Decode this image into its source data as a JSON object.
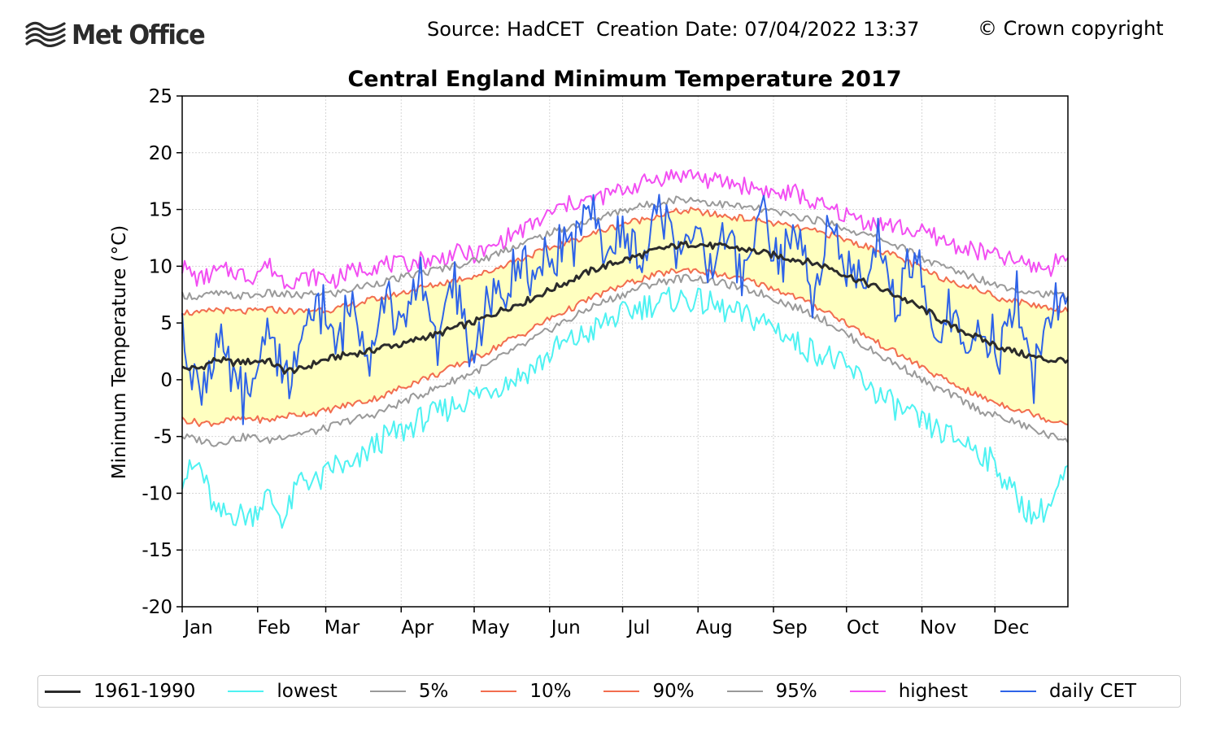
{
  "header": {
    "logo_text": "Met Office",
    "source_text": "Source: HadCET  Creation Date: 07/04/2022 13:37",
    "copyright_text": "© Crown copyright"
  },
  "chart_data": {
    "type": "line",
    "title": "Central England Minimum Temperature 2017",
    "xlabel": "",
    "ylabel": "Minimum Temperature (°C)",
    "ylim": [
      -20,
      25
    ],
    "xlim": [
      1,
      365
    ],
    "yticks": [
      -20,
      -15,
      -10,
      -5,
      0,
      5,
      10,
      15,
      20,
      25
    ],
    "ytick_labels": [
      "-20",
      "-15",
      "-10",
      "-5",
      "0",
      "5",
      "10",
      "15",
      "20",
      "25"
    ],
    "month_labels": [
      "Jan",
      "Feb",
      "Mar",
      "Apr",
      "May",
      "Jun",
      "Jul",
      "Aug",
      "Sep",
      "Oct",
      "Nov",
      "Dec"
    ],
    "month_start_days": [
      1,
      32,
      60,
      91,
      121,
      152,
      182,
      213,
      244,
      274,
      305,
      335
    ],
    "grid": true,
    "legend_position": "bottom",
    "shaded_band": {
      "between": [
        "10%",
        "90%"
      ],
      "color": "#ffffc0"
    },
    "series_x": [
      1,
      8,
      15,
      22,
      29,
      36,
      43,
      50,
      57,
      64,
      71,
      78,
      85,
      92,
      99,
      106,
      113,
      120,
      127,
      134,
      141,
      148,
      155,
      162,
      169,
      176,
      183,
      190,
      197,
      204,
      211,
      218,
      225,
      232,
      239,
      246,
      253,
      260,
      267,
      274,
      281,
      288,
      295,
      302,
      309,
      316,
      323,
      330,
      337,
      344,
      351,
      358,
      365
    ],
    "series": [
      {
        "name": "1961-1990",
        "color": "#2b2b2b",
        "width": 3,
        "values": [
          1.0,
          1.0,
          1.8,
          1.5,
          1.6,
          1.7,
          0.8,
          0.9,
          1.6,
          2.0,
          2.3,
          2.5,
          3.0,
          3.1,
          3.7,
          4.0,
          4.6,
          5.0,
          5.6,
          6.3,
          6.8,
          7.5,
          8.2,
          8.9,
          9.6,
          10.1,
          10.6,
          11.0,
          11.5,
          11.8,
          12.0,
          11.8,
          11.7,
          11.5,
          11.2,
          10.9,
          10.6,
          10.3,
          9.9,
          9.2,
          8.6,
          8.0,
          7.4,
          6.6,
          5.8,
          4.8,
          4.2,
          3.5,
          2.9,
          2.4,
          2.0,
          1.7,
          1.8
        ]
      },
      {
        "name": "lowest",
        "color": "#4ef2f2",
        "width": 2,
        "values": [
          -8.6,
          -7.5,
          -12.0,
          -11.8,
          -12.0,
          -10.2,
          -12.4,
          -8.5,
          -9.2,
          -7.4,
          -8.0,
          -6.1,
          -5.0,
          -4.5,
          -3.5,
          -3.0,
          -2.2,
          -1.5,
          -0.8,
          -0.2,
          0.5,
          1.5,
          2.8,
          3.5,
          4.2,
          5.2,
          5.8,
          6.5,
          6.8,
          7.1,
          7.0,
          6.6,
          6.0,
          5.6,
          5.2,
          4.5,
          3.2,
          2.6,
          2.0,
          0.9,
          0.0,
          -1.5,
          -2.5,
          -3.5,
          -4.2,
          -5.0,
          -5.5,
          -6.5,
          -8.0,
          -10.5,
          -12.0,
          -11.0,
          -8.0
        ]
      },
      {
        "name": "5%",
        "color": "#9a9a9a",
        "width": 2,
        "values": [
          -5.0,
          -5.3,
          -5.6,
          -5.2,
          -5.0,
          -5.4,
          -4.9,
          -4.7,
          -4.5,
          -4.0,
          -3.5,
          -3.2,
          -2.6,
          -1.9,
          -1.3,
          -0.7,
          0.0,
          0.6,
          1.3,
          2.3,
          3.0,
          3.9,
          4.8,
          5.5,
          6.4,
          7.0,
          7.6,
          8.2,
          8.6,
          8.9,
          9.0,
          8.7,
          8.4,
          8.0,
          7.6,
          7.0,
          6.4,
          5.8,
          5.0,
          4.0,
          3.0,
          2.1,
          1.3,
          0.5,
          -0.6,
          -1.2,
          -2.0,
          -2.8,
          -3.3,
          -3.8,
          -4.4,
          -5.0,
          -5.2
        ]
      },
      {
        "name": "10%",
        "color": "#f26d4f",
        "width": 2,
        "values": [
          -3.5,
          -3.8,
          -3.8,
          -3.5,
          -3.4,
          -3.6,
          -3.2,
          -3.0,
          -2.9,
          -2.5,
          -2.1,
          -1.8,
          -1.3,
          -0.6,
          0.0,
          0.5,
          1.2,
          1.8,
          2.5,
          3.4,
          4.0,
          4.9,
          5.7,
          6.4,
          7.2,
          7.8,
          8.4,
          8.9,
          9.3,
          9.6,
          9.7,
          9.4,
          9.1,
          8.8,
          8.4,
          7.9,
          7.3,
          6.6,
          5.9,
          5.0,
          4.0,
          3.1,
          2.3,
          1.5,
          0.6,
          -0.2,
          -0.9,
          -1.6,
          -2.1,
          -2.6,
          -3.0,
          -3.6,
          -3.7
        ]
      },
      {
        "name": "90%",
        "color": "#f26d4f",
        "width": 2,
        "values": [
          6.0,
          5.8,
          6.2,
          6.0,
          6.0,
          6.2,
          6.1,
          6.0,
          6.2,
          6.2,
          6.6,
          7.0,
          7.3,
          7.7,
          8.1,
          8.4,
          8.8,
          9.1,
          9.5,
          10.2,
          10.7,
          11.3,
          11.8,
          12.3,
          12.8,
          13.3,
          13.8,
          14.1,
          14.5,
          14.8,
          14.9,
          14.6,
          14.4,
          14.2,
          14.0,
          13.7,
          13.4,
          13.1,
          12.8,
          12.3,
          11.8,
          11.4,
          10.8,
          10.1,
          9.3,
          8.8,
          8.3,
          7.8,
          7.2,
          6.9,
          6.6,
          6.3,
          6.2
        ]
      },
      {
        "name": "95%",
        "color": "#9a9a9a",
        "width": 2,
        "values": [
          7.5,
          7.3,
          7.6,
          7.4,
          7.4,
          7.6,
          7.5,
          7.4,
          7.6,
          7.6,
          8.0,
          8.4,
          8.7,
          9.0,
          9.4,
          9.7,
          10.1,
          10.4,
          10.8,
          11.5,
          12.0,
          12.6,
          13.1,
          13.6,
          14.0,
          14.5,
          15.0,
          15.3,
          15.6,
          15.9,
          15.9,
          15.6,
          15.4,
          15.2,
          15.0,
          14.7,
          14.4,
          14.1,
          13.8,
          13.3,
          12.8,
          12.4,
          11.8,
          11.1,
          10.3,
          9.8,
          9.3,
          8.8,
          8.3,
          8.0,
          7.7,
          7.5,
          7.4
        ]
      },
      {
        "name": "highest",
        "color": "#f24ef2",
        "width": 2,
        "values": [
          10.0,
          8.8,
          9.5,
          9.6,
          9.0,
          10.2,
          8.7,
          8.9,
          9.1,
          8.8,
          9.6,
          10.0,
          10.2,
          10.1,
          10.6,
          10.5,
          11.2,
          11.0,
          11.4,
          12.5,
          13.2,
          14.0,
          15.0,
          15.6,
          15.8,
          16.3,
          16.8,
          17.3,
          17.8,
          18.0,
          18.1,
          17.5,
          17.4,
          17.1,
          16.8,
          16.3,
          16.5,
          15.6,
          15.0,
          14.5,
          14.0,
          13.7,
          13.5,
          13.0,
          12.8,
          12.0,
          11.6,
          11.2,
          10.8,
          10.4,
          10.0,
          9.8,
          11.5
        ]
      },
      {
        "name": "daily CET",
        "color": "#2e63e8",
        "width": 2,
        "values": [
          4.5,
          -1.0,
          3.5,
          0.0,
          -2.0,
          5.5,
          -0.5,
          2.0,
          7.5,
          3.0,
          6.5,
          2.5,
          8.0,
          4.0,
          9.5,
          3.5,
          9.0,
          2.0,
          6.5,
          7.5,
          10.5,
          9.0,
          12.0,
          12.5,
          14.0,
          11.0,
          13.5,
          10.5,
          15.0,
          12.5,
          13.0,
          9.5,
          14.0,
          8.5,
          15.5,
          10.0,
          13.0,
          8.0,
          14.5,
          9.0,
          7.5,
          12.5,
          6.0,
          11.5,
          3.0,
          6.5,
          1.0,
          5.5,
          1.5,
          7.5,
          0.5,
          6.0,
          7.0
        ]
      }
    ],
    "daily_noise": {
      "1961-1990": 0.3,
      "lowest": 1.2,
      "5%": 0.35,
      "10%": 0.3,
      "90%": 0.3,
      "95%": 0.35,
      "highest": 0.8,
      "daily CET": 2.5
    }
  },
  "legend": {
    "items": [
      {
        "label": "1961-1990",
        "color": "#2b2b2b"
      },
      {
        "label": "lowest",
        "color": "#4ef2f2"
      },
      {
        "label": "5%",
        "color": "#9a9a9a"
      },
      {
        "label": "10%",
        "color": "#f26d4f"
      },
      {
        "label": "90%",
        "color": "#f26d4f"
      },
      {
        "label": "95%",
        "color": "#9a9a9a"
      },
      {
        "label": "highest",
        "color": "#f24ef2"
      },
      {
        "label": "daily CET",
        "color": "#2e63e8"
      }
    ]
  }
}
